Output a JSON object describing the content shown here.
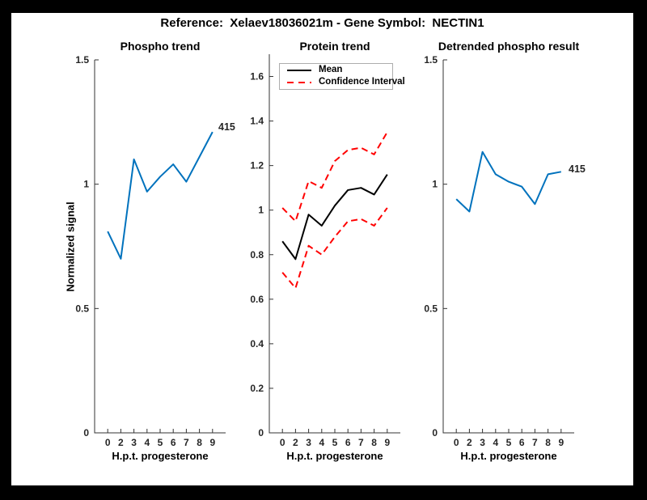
{
  "title": "Reference:  Xelaev18036021m - Gene Symbol:  NECTIN1",
  "colors": {
    "frame_background": "#000000",
    "canvas": "#ffffff",
    "axis": "#333333",
    "tick_text": "#262626",
    "blue_line": "#0072bd",
    "mean_line": "#000000",
    "ci_line": "#ff0000",
    "legend_border": "#adadad"
  },
  "legend": {
    "items": [
      {
        "label": "Mean",
        "color": "#000000",
        "style": "solid"
      },
      {
        "label": "Confidence Interval",
        "color": "#ff0000",
        "style": "dashed"
      }
    ]
  },
  "chart_data": [
    {
      "type": "line",
      "title": "Phospho trend",
      "xlabel": "H.p.t. progesterone",
      "ylabel": "Normalized signal",
      "x": [
        0,
        2,
        3,
        4,
        5,
        6,
        7,
        8,
        9
      ],
      "x_tick_labels": [
        "0",
        "2",
        "3",
        "4",
        "5",
        "6",
        "7",
        "8",
        "9"
      ],
      "ylim": [
        0,
        1.5
      ],
      "yticks": [
        0,
        0.5,
        1,
        1.5
      ],
      "grid": false,
      "annotation": "415",
      "series": [
        {
          "name": "phospho-signal",
          "color": "#0072bd",
          "style": "solid",
          "values": [
            0.81,
            0.7,
            1.1,
            0.97,
            1.03,
            1.08,
            1.01,
            1.11,
            1.21
          ]
        }
      ]
    },
    {
      "type": "line",
      "title": "Protein trend",
      "xlabel": "H.p.t. progesterone",
      "ylabel": "",
      "x": [
        0,
        2,
        3,
        4,
        5,
        6,
        7,
        8,
        9
      ],
      "x_tick_labels": [
        "0",
        "2",
        "3",
        "4",
        "5",
        "6",
        "7",
        "8",
        "9"
      ],
      "ylim": [
        0,
        1.7
      ],
      "yticks": [
        0,
        0.2,
        0.4,
        0.6,
        0.8,
        1,
        1.2,
        1.4,
        1.6
      ],
      "grid": false,
      "legend_position": "northwest",
      "series": [
        {
          "name": "mean",
          "color": "#000000",
          "style": "solid",
          "values": [
            0.86,
            0.78,
            0.98,
            0.93,
            1.02,
            1.09,
            1.1,
            1.07,
            1.16
          ]
        },
        {
          "name": "ci-upper",
          "color": "#ff0000",
          "style": "dashed",
          "values": [
            1.01,
            0.95,
            1.13,
            1.1,
            1.22,
            1.27,
            1.28,
            1.25,
            1.35
          ]
        },
        {
          "name": "ci-lower",
          "color": "#ff0000",
          "style": "dashed",
          "values": [
            0.72,
            0.65,
            0.84,
            0.8,
            0.88,
            0.95,
            0.96,
            0.93,
            1.01
          ]
        }
      ]
    },
    {
      "type": "line",
      "title": "Detrended phospho result",
      "xlabel": "H.p.t. progesterone",
      "ylabel": "",
      "x": [
        0,
        2,
        3,
        4,
        5,
        6,
        7,
        8,
        9
      ],
      "x_tick_labels": [
        "0",
        "2",
        "3",
        "4",
        "5",
        "6",
        "7",
        "8",
        "9"
      ],
      "ylim": [
        0,
        1.5
      ],
      "yticks": [
        0,
        0.5,
        1,
        1.5
      ],
      "grid": false,
      "annotation": "415",
      "series": [
        {
          "name": "detrended-signal",
          "color": "#0072bd",
          "style": "solid",
          "values": [
            0.94,
            0.89,
            1.13,
            1.04,
            1.01,
            0.99,
            0.92,
            1.04,
            1.05
          ]
        }
      ]
    }
  ]
}
